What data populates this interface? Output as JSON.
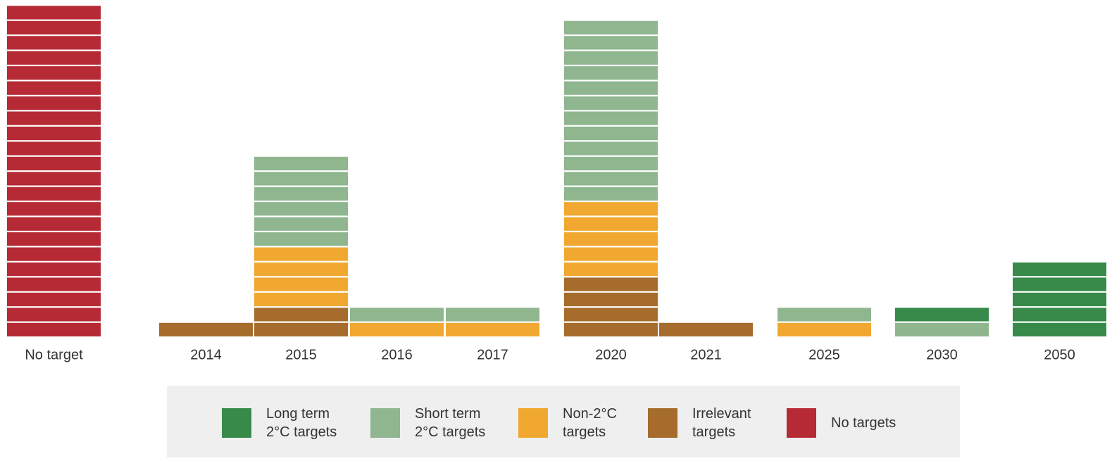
{
  "chart_data": {
    "type": "stacked-unit-bar",
    "categories": [
      "No target",
      "2014",
      "2015",
      "2016",
      "2017",
      "2020",
      "2021",
      "2025",
      "2030",
      "2050"
    ],
    "series": [
      {
        "name": "Irrelevant\ntargets",
        "color": "#a56c2c",
        "values": [
          0,
          1,
          2,
          0,
          0,
          4,
          1,
          0,
          0,
          0
        ]
      },
      {
        "name": "Non-2°C\ntargets",
        "color": "#f0a830",
        "values": [
          0,
          0,
          4,
          1,
          1,
          5,
          0,
          1,
          0,
          0
        ]
      },
      {
        "name": "Short term\n2°C targets",
        "color": "#8fb68f",
        "values": [
          0,
          0,
          6,
          1,
          1,
          12,
          0,
          1,
          1,
          0
        ]
      },
      {
        "name": "Long term\n2°C targets",
        "color": "#378a4a",
        "values": [
          0,
          0,
          0,
          0,
          0,
          0,
          0,
          0,
          1,
          5
        ]
      },
      {
        "name": "No targets",
        "color": "#b52a35",
        "values": [
          22,
          0,
          0,
          0,
          0,
          0,
          0,
          0,
          0,
          0
        ]
      }
    ]
  }
}
